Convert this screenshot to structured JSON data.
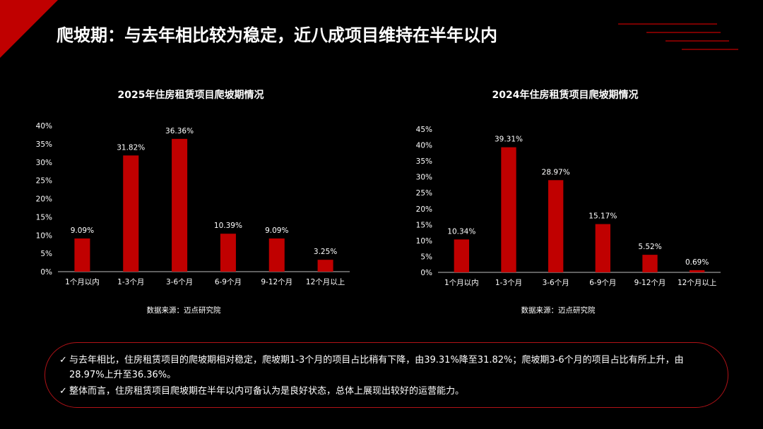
{
  "slide": {
    "title": "爬坡期：与去年相比较为稳定，近八成项目维持在半年以内"
  },
  "colors": {
    "background": "#000000",
    "bar": "#c00000",
    "accent": "#c00000",
    "text": "#ffffff"
  },
  "chart_data": [
    {
      "type": "bar",
      "title": "2025年住房租赁项目爬坡期情况",
      "categories": [
        "1个月以内",
        "1-3个月",
        "3-6个月",
        "6-9个月",
        "9-12个月",
        "12个月以上"
      ],
      "values": [
        9.09,
        31.82,
        36.36,
        10.39,
        9.09,
        3.25
      ],
      "data_labels": [
        "9.09%",
        "31.82%",
        "36.36%",
        "10.39%",
        "9.09%",
        "3.25%"
      ],
      "y_ticks": [
        "0%",
        "5%",
        "10%",
        "15%",
        "20%",
        "25%",
        "30%",
        "35%",
        "40%"
      ],
      "ylim": [
        0,
        40
      ],
      "source": "数据来源：迈点研究院",
      "grid": false
    },
    {
      "type": "bar",
      "title": "2024年住房租赁项目爬坡期情况",
      "categories": [
        "1个月以内",
        "1-3个月",
        "3-6个月",
        "6-9个月",
        "9-12个月",
        "12个月以上"
      ],
      "values": [
        10.34,
        39.31,
        28.97,
        15.17,
        5.52,
        0.69
      ],
      "data_labels": [
        "10.34%",
        "39.31%",
        "28.97%",
        "15.17%",
        "5.52%",
        "0.69%"
      ],
      "y_ticks": [
        "0%",
        "5%",
        "10%",
        "15%",
        "20%",
        "25%",
        "30%",
        "35%",
        "40%",
        "45%"
      ],
      "ylim": [
        0,
        45
      ],
      "source": "数据来源：迈点研究院",
      "grid": false
    }
  ],
  "summary": {
    "check_symbol": "✓",
    "points": [
      "与去年相比，住房租赁项目的爬坡期相对稳定，爬坡期1-3个月的项目占比稍有下降，由39.31%降至31.82%；爬坡期3-6个月的项目占比有所上升，由28.97%上升至36.36%。",
      "整体而言，住房租赁项目爬坡期在半年以内可备认为是良好状态，总体上展现出较好的运营能力。"
    ]
  }
}
